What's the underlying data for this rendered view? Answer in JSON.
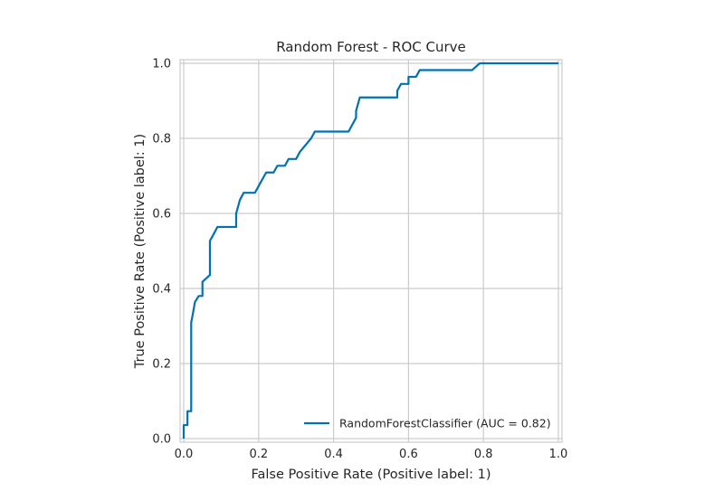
{
  "chart_data": {
    "type": "line",
    "title": "Random Forest - ROC Curve",
    "xlabel": "False Positive Rate (Positive label: 1)",
    "ylabel": "True Positive Rate (Positive label: 1)",
    "xlim": [
      0,
      1
    ],
    "ylim": [
      0,
      1
    ],
    "xticks": [
      "0.0",
      "0.2",
      "0.4",
      "0.6",
      "0.8",
      "1.0"
    ],
    "yticks": [
      "0.0",
      "0.2",
      "0.4",
      "0.6",
      "0.8",
      "1.0"
    ],
    "grid": true,
    "legend_position": "lower-right",
    "series": [
      {
        "name": "RandomForestClassifier (AUC = 0.82)",
        "color": "#0072b2",
        "x": [
          0.0,
          0.0,
          0.01,
          0.01,
          0.02,
          0.02,
          0.02,
          0.024,
          0.03,
          0.03,
          0.04,
          0.05,
          0.05,
          0.07,
          0.07,
          0.07,
          0.08,
          0.09,
          0.14,
          0.14,
          0.15,
          0.16,
          0.19,
          0.2,
          0.22,
          0.24,
          0.25,
          0.27,
          0.28,
          0.3,
          0.31,
          0.34,
          0.35,
          0.44,
          0.46,
          0.46,
          0.47,
          0.57,
          0.57,
          0.58,
          0.6,
          0.6,
          0.62,
          0.63,
          0.77,
          0.79,
          0.8,
          1.0
        ],
        "y": [
          0.0,
          0.036,
          0.036,
          0.073,
          0.073,
          0.29,
          0.31,
          0.33,
          0.364,
          0.364,
          0.38,
          0.38,
          0.418,
          0.436,
          0.527,
          0.527,
          0.545,
          0.564,
          0.564,
          0.6,
          0.636,
          0.655,
          0.655,
          0.673,
          0.709,
          0.709,
          0.727,
          0.727,
          0.745,
          0.745,
          0.764,
          0.8,
          0.818,
          0.818,
          0.855,
          0.873,
          0.909,
          0.909,
          0.927,
          0.945,
          0.945,
          0.964,
          0.964,
          0.982,
          0.982,
          1.0,
          1.0,
          1.0
        ]
      }
    ]
  }
}
